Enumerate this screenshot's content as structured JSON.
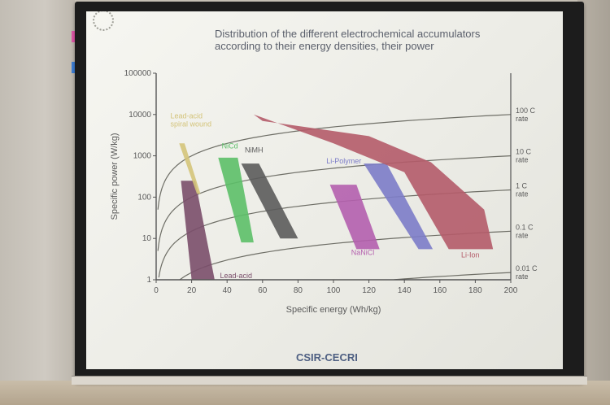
{
  "slide": {
    "title_line1": "Distribution of the different electrochemical accumulators",
    "title_line2": "according to their energy densities, their power",
    "footer": "CSIR-CECRI"
  },
  "chart_data": {
    "type": "area",
    "title": "",
    "xlabel": "Specific energy (Wh/kg)",
    "ylabel": "Specific power (W/kg)",
    "xlim": [
      0,
      200
    ],
    "ylim": [
      1,
      100000
    ],
    "y_scale": "log",
    "x_ticks": [
      "0",
      "20",
      "40",
      "60",
      "80",
      "100",
      "120",
      "140",
      "160",
      "180",
      "200"
    ],
    "y_ticks": [
      "1",
      "10",
      "100",
      "1000",
      "10000",
      "100000"
    ],
    "rate_labels": [
      {
        "line1": "100 C",
        "line2": "rate",
        "power_at_edge": 10000
      },
      {
        "line1": "10 C",
        "line2": "rate",
        "power_at_edge": 1000
      },
      {
        "line1": "1 C",
        "line2": "rate",
        "power_at_edge": 150
      },
      {
        "line1": "0.1 C",
        "line2": "rate",
        "power_at_edge": 15
      },
      {
        "line1": "0.01 C",
        "line2": "rate",
        "power_at_edge": 1.5
      }
    ],
    "regions": [
      {
        "name": "Lead-acid",
        "color": "#7a4e6a",
        "label_x": 36,
        "label_y": 1.1,
        "points": [
          [
            14,
            250
          ],
          [
            22,
            250
          ],
          [
            33,
            1
          ],
          [
            20,
            1
          ]
        ]
      },
      {
        "name": "Lead-acid spiral wound",
        "label_line1": "Lead-acid",
        "label_line2": "spiral wound",
        "color": "#d4c47a",
        "label_x": 8,
        "label_y": 8000,
        "points": [
          [
            13,
            2000
          ],
          [
            16,
            2000
          ],
          [
            25,
            120
          ],
          [
            23,
            120
          ]
        ]
      },
      {
        "name": "NiCd",
        "color": "#5cbf68",
        "label_x": 37,
        "label_y": 1500,
        "points": [
          [
            35,
            900
          ],
          [
            46,
            900
          ],
          [
            55,
            8
          ],
          [
            48,
            8
          ]
        ]
      },
      {
        "name": "NiMH",
        "color": "#5b5b5b",
        "label_x": 50,
        "label_y": 1200,
        "points": [
          [
            48,
            650
          ],
          [
            58,
            650
          ],
          [
            80,
            10
          ],
          [
            70,
            10
          ]
        ]
      },
      {
        "name": "Li-Polymer",
        "color": "#7c7cc8",
        "label_x": 96,
        "label_y": 650,
        "points": [
          [
            117,
            650
          ],
          [
            130,
            650
          ],
          [
            156,
            5.5
          ],
          [
            148,
            5.5
          ]
        ]
      },
      {
        "name": "NaNiCl",
        "color": "#b45fae",
        "label_x": 110,
        "label_y": 4,
        "points": [
          [
            98,
            200
          ],
          [
            113,
            200
          ],
          [
            126,
            5.5
          ],
          [
            113,
            5.5
          ]
        ]
      },
      {
        "name": "Li-Ion",
        "color": "#b45b69",
        "label_x": 172,
        "label_y": 3.5,
        "points": [
          [
            55,
            10000
          ],
          [
            60,
            7000
          ],
          [
            120,
            3000
          ],
          [
            155,
            700
          ],
          [
            185,
            50
          ],
          [
            190,
            5.5
          ],
          [
            165,
            5.5
          ],
          [
            140,
            400
          ],
          [
            100,
            2000
          ]
        ]
      }
    ]
  }
}
